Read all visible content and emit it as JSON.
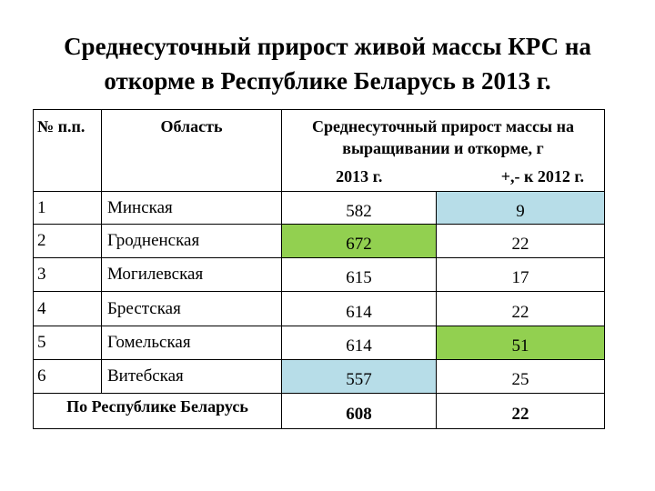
{
  "title": {
    "line1": "Среднесуточный прирост живой массы КРС на",
    "line2": "откорме в Республике Беларусь в 2013 г."
  },
  "table": {
    "headers": {
      "number": "№ п.п.",
      "region": "Область",
      "gain_group": "Среднесуточный прирост массы на выращивании и откорме, г",
      "year_2013": "2013 г.",
      "change_vs_2012": "+,- к 2012 г."
    },
    "rows": [
      {
        "number": "1",
        "region": "Минская",
        "value_2013": "582",
        "change": "9"
      },
      {
        "number": "2",
        "region": "Гродненская",
        "value_2013": "672",
        "change": "22"
      },
      {
        "number": "3",
        "region": "Могилевская",
        "value_2013": "615",
        "change": "17"
      },
      {
        "number": "4",
        "region": "Брестская",
        "value_2013": "614",
        "change": "22"
      },
      {
        "number": "5",
        "region": "Гомельская",
        "value_2013": "614",
        "change": "51"
      },
      {
        "number": "6",
        "region": "Витебская",
        "value_2013": "557",
        "change": "25"
      }
    ],
    "total": {
      "label": "По Республике Беларусь",
      "value_2013": "608",
      "change": "22"
    },
    "highlight_colors": {
      "blue": "#b7dde8",
      "green": "#92d050"
    }
  }
}
